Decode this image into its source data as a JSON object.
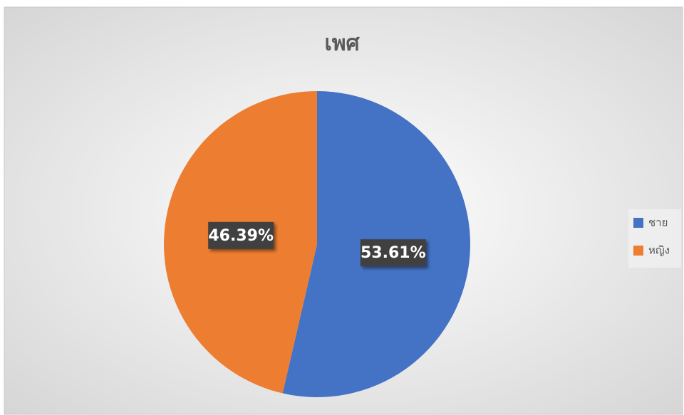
{
  "chart_data": {
    "type": "pie",
    "title": "เพศ",
    "categories": [
      "ชาย",
      "หญิง"
    ],
    "values": [
      53.61,
      46.39
    ],
    "value_labels": [
      "53.61%",
      "46.39%"
    ],
    "colors": [
      "#4472c4",
      "#ed7d31"
    ],
    "legend": "right"
  }
}
